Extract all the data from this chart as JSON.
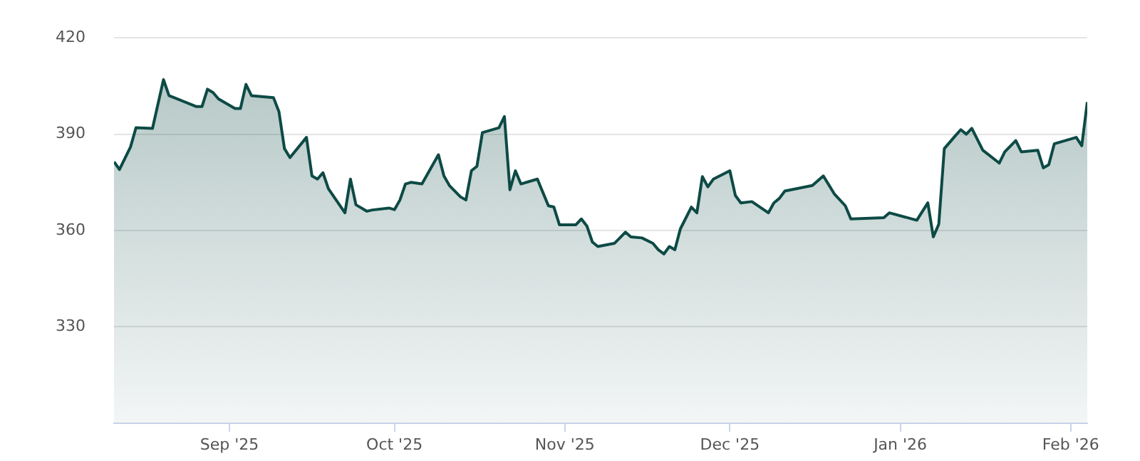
{
  "chart_data": {
    "type": "area",
    "x": [
      "2025-08-11",
      "2025-08-12",
      "2025-08-14",
      "2025-08-15",
      "2025-08-18",
      "2025-08-20",
      "2025-08-21",
      "2025-08-26",
      "2025-08-27",
      "2025-08-28",
      "2025-08-29",
      "2025-08-30",
      "2025-09-01",
      "2025-09-02",
      "2025-09-03",
      "2025-09-04",
      "2025-09-05",
      "2025-09-09",
      "2025-09-10",
      "2025-09-11",
      "2025-09-12",
      "2025-09-15",
      "2025-09-16",
      "2025-09-17",
      "2025-09-18",
      "2025-09-19",
      "2025-09-22",
      "2025-09-23",
      "2025-09-24",
      "2025-09-26",
      "2025-09-27",
      "2025-09-30",
      "2025-10-01",
      "2025-10-02",
      "2025-10-03",
      "2025-10-04",
      "2025-10-06",
      "2025-10-09",
      "2025-10-10",
      "2025-10-11",
      "2025-10-13",
      "2025-10-14",
      "2025-10-15",
      "2025-10-16",
      "2025-10-17",
      "2025-10-20",
      "2025-10-21",
      "2025-10-22",
      "2025-10-23",
      "2025-10-24",
      "2025-10-27",
      "2025-10-29",
      "2025-10-30",
      "2025-10-31",
      "2025-11-03",
      "2025-11-04",
      "2025-11-05",
      "2025-11-06",
      "2025-11-07",
      "2025-11-10",
      "2025-11-11",
      "2025-11-12",
      "2025-11-13",
      "2025-11-15",
      "2025-11-17",
      "2025-11-18",
      "2025-11-19",
      "2025-11-20",
      "2025-11-21",
      "2025-11-22",
      "2025-11-24",
      "2025-11-25",
      "2025-11-26",
      "2025-11-27",
      "2025-11-28",
      "2025-12-01",
      "2025-12-02",
      "2025-12-03",
      "2025-12-05",
      "2025-12-08",
      "2025-12-09",
      "2025-12-10",
      "2025-12-11",
      "2025-12-16",
      "2025-12-18",
      "2025-12-20",
      "2025-12-22",
      "2025-12-23",
      "2025-12-29",
      "2025-12-30",
      "2026-01-04",
      "2026-01-06",
      "2026-01-07",
      "2026-01-08",
      "2026-01-09",
      "2026-01-11",
      "2026-01-12",
      "2026-01-13",
      "2026-01-14",
      "2026-01-16",
      "2026-01-19",
      "2026-01-20",
      "2026-01-22",
      "2026-01-23",
      "2026-01-26",
      "2026-01-27",
      "2026-01-28",
      "2026-01-29",
      "2026-02-02",
      "2026-02-03",
      "2026-02-04"
    ],
    "series": [
      {
        "color": "#0d4a45",
        "values": [
          381.4,
          379,
          386,
          392,
          391.8,
          407,
          402,
          398.6,
          398.6,
          404,
          403,
          401,
          399,
          398,
          398,
          405.5,
          402,
          401.4,
          397,
          385.5,
          382.7,
          389,
          377,
          376,
          378,
          373,
          365.5,
          376,
          368,
          366,
          366.4,
          367,
          366.5,
          369.5,
          374.5,
          375,
          374.5,
          383.6,
          377,
          374,
          370.5,
          369.5,
          378.6,
          380,
          390.5,
          392,
          395.5,
          372.7,
          378.6,
          374.5,
          376,
          367.7,
          367.3,
          361.8,
          361.8,
          363.6,
          361.4,
          356.4,
          355,
          356,
          357.7,
          359.5,
          358,
          357.7,
          356,
          354,
          352.7,
          355,
          354,
          360.5,
          367.3,
          365.5,
          376.8,
          373.6,
          376,
          378.6,
          370.9,
          368.6,
          369,
          365.5,
          368.6,
          370,
          372.3,
          374,
          377,
          371.4,
          367.7,
          363.6,
          364,
          365.5,
          363.2,
          368.6,
          358,
          362,
          385.5,
          389.5,
          391.4,
          390,
          391.8,
          385,
          381,
          384.5,
          388,
          384.5,
          385,
          379.5,
          380.5,
          387,
          389,
          386.4,
          400
        ]
      }
    ],
    "xlim": [
      "2025-08-11",
      "2026-02-04"
    ],
    "xticks": [
      {
        "value": "2025-09-01",
        "label": "Sep '25"
      },
      {
        "value": "2025-10-01",
        "label": "Oct '25"
      },
      {
        "value": "2025-11-01",
        "label": "Nov '25"
      },
      {
        "value": "2025-12-01",
        "label": "Dec '25"
      },
      {
        "value": "2026-01-01",
        "label": "Jan '26"
      },
      {
        "value": "2026-02-01",
        "label": "Feb '26"
      }
    ],
    "ylim": [
      300,
      420
    ],
    "yticks": [
      330,
      360,
      390,
      420
    ],
    "grid": "y",
    "legend": false
  }
}
